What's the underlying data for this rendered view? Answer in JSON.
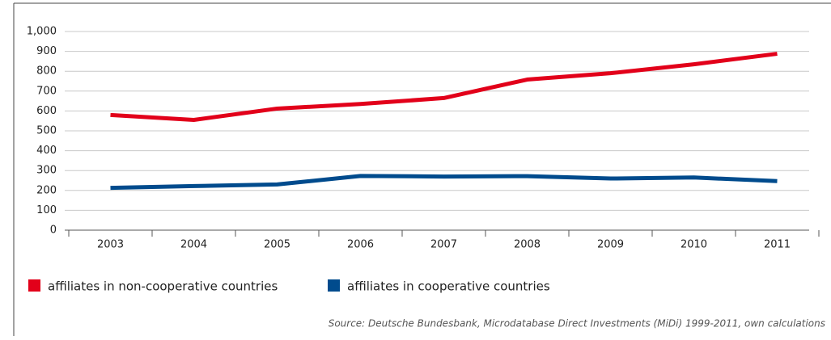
{
  "chart_data": {
    "type": "line",
    "categories": [
      "2003",
      "2004",
      "2005",
      "2006",
      "2007",
      "2008",
      "2009",
      "2010",
      "2011"
    ],
    "series": [
      {
        "name": "affiliates in non-cooperative countries",
        "color": "#e2001a",
        "values": [
          580,
          555,
          612,
          635,
          665,
          758,
          790,
          835,
          888
        ]
      },
      {
        "name": "affiliates in cooperative countries",
        "color": "#004b8d",
        "values": [
          213,
          222,
          230,
          273,
          270,
          272,
          260,
          265,
          247
        ]
      }
    ],
    "ylim": [
      0,
      1000
    ],
    "yticks": [
      0,
      100,
      200,
      300,
      400,
      500,
      600,
      700,
      800,
      900,
      {
        "value": 1000,
        "label": "1,000"
      }
    ],
    "grid": true,
    "source": "Source: Deutsche Bundesbank, Microdatabase Direct Investments (MiDi) 1999-2011, own calculations"
  }
}
